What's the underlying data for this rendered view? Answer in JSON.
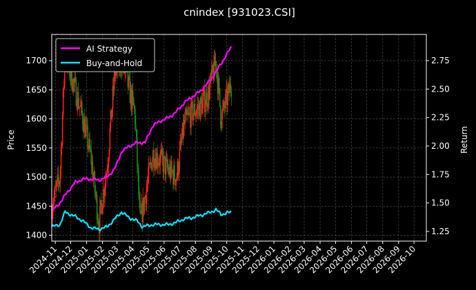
{
  "colors": {
    "background": "#000000",
    "grid": "#555555",
    "ai_line": "#ff00ff",
    "buyhold_line": "#00e5ff",
    "candle_up": "#ff1f1f",
    "candle_down": "#1a8c1a"
  },
  "chart_data": {
    "type": "line",
    "title": "cnindex [931023.CSI]",
    "ylabel": "Price",
    "y2label": "Return",
    "grid": true,
    "legend_position": "top-left",
    "xlim": [
      "2024-10-25",
      "2026-10-25"
    ],
    "ylim": [
      1390,
      1745
    ],
    "y2lim": [
      1.165,
      2.98
    ],
    "y_ticks": [
      1400,
      1450,
      1500,
      1550,
      1600,
      1650,
      1700
    ],
    "y2_ticks": [
      "1.25",
      "1.50",
      "1.75",
      "2.00",
      "2.25",
      "2.50",
      "2.75"
    ],
    "x_ticks": [
      "2024-11",
      "2024-12",
      "2025-01",
      "2025-02",
      "2025-03",
      "2025-04",
      "2025-05",
      "2025-06",
      "2025-07",
      "2025-08",
      "2025-09",
      "2025-10",
      "2025-11",
      "2025-12",
      "2026-01",
      "2026-02",
      "2026-03",
      "2026-04",
      "2026-05",
      "2026-06",
      "2026-07",
      "2026-08",
      "2026-09",
      "2026-10"
    ],
    "series": [
      {
        "name": "AI Strategy",
        "axis": "right",
        "x": [
          "2024-10-25",
          "2024-11-10",
          "2024-11-25",
          "2024-12-10",
          "2024-12-25",
          "2025-01-10",
          "2025-01-25",
          "2025-02-10",
          "2025-02-25",
          "2025-03-10",
          "2025-03-25",
          "2025-04-10",
          "2025-04-25",
          "2025-05-10",
          "2025-05-25",
          "2025-06-10",
          "2025-06-25",
          "2025-07-10",
          "2025-07-25",
          "2025-08-10",
          "2025-08-25",
          "2025-09-10",
          "2025-09-25",
          "2025-10-10"
        ],
        "values": [
          1.43,
          1.5,
          1.6,
          1.68,
          1.71,
          1.71,
          1.7,
          1.73,
          1.8,
          1.95,
          2.0,
          2.03,
          2.03,
          2.18,
          2.22,
          2.25,
          2.3,
          2.38,
          2.43,
          2.48,
          2.55,
          2.65,
          2.76,
          2.87
        ]
      },
      {
        "name": "Buy-and-Hold",
        "axis": "right",
        "x": [
          "2024-10-25",
          "2024-11-10",
          "2024-11-20",
          "2024-12-10",
          "2024-12-25",
          "2025-01-10",
          "2025-01-25",
          "2025-02-10",
          "2025-02-25",
          "2025-03-10",
          "2025-03-25",
          "2025-04-10",
          "2025-04-20",
          "2025-05-10",
          "2025-05-25",
          "2025-06-10",
          "2025-06-25",
          "2025-07-10",
          "2025-07-25",
          "2025-08-10",
          "2025-08-25",
          "2025-09-10",
          "2025-09-20",
          "2025-10-10"
        ],
        "values": [
          1.29,
          1.31,
          1.42,
          1.38,
          1.34,
          1.28,
          1.27,
          1.29,
          1.36,
          1.42,
          1.37,
          1.34,
          1.29,
          1.31,
          1.31,
          1.31,
          1.33,
          1.36,
          1.37,
          1.39,
          1.41,
          1.44,
          1.4,
          1.42
        ]
      },
      {
        "name": "Price",
        "axis": "left",
        "render": "candlestick",
        "x": [
          "2024-10-25",
          "2024-11-10",
          "2024-11-20",
          "2024-12-10",
          "2024-12-25",
          "2025-01-10",
          "2025-01-25",
          "2025-02-10",
          "2025-02-25",
          "2025-03-10",
          "2025-03-25",
          "2025-04-05",
          "2025-04-15",
          "2025-05-10",
          "2025-05-25",
          "2025-06-10",
          "2025-06-25",
          "2025-07-10",
          "2025-07-25",
          "2025-08-10",
          "2025-08-25",
          "2025-09-10",
          "2025-09-20",
          "2025-10-10"
        ],
        "values": [
          1450,
          1500,
          1710,
          1650,
          1600,
          1530,
          1420,
          1520,
          1680,
          1700,
          1650,
          1610,
          1420,
          1540,
          1530,
          1510,
          1500,
          1590,
          1610,
          1620,
          1640,
          1700,
          1600,
          1660
        ]
      }
    ]
  }
}
